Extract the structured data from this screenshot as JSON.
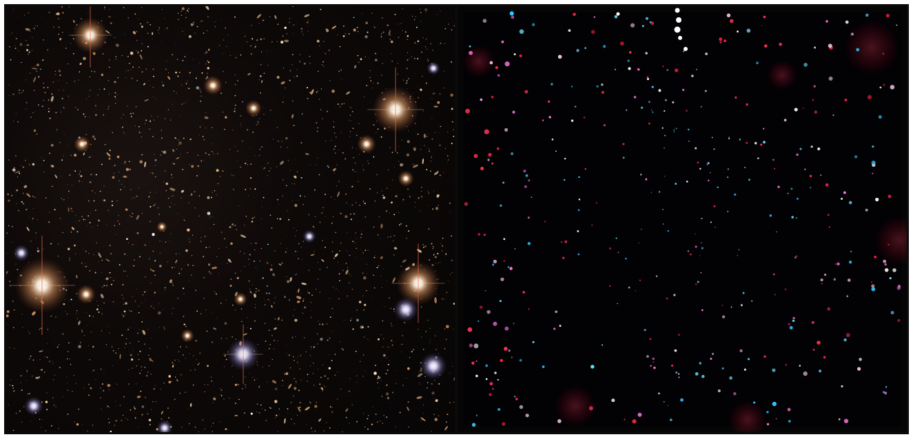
{
  "panels": [
    {
      "id": "optical-deep-field",
      "description_colors": {
        "background": "#0b0807",
        "star_warm": "#ffd7a8",
        "star_core": "#ffffff",
        "galaxy": "#d9a36a"
      }
    },
    {
      "id": "xray-deep-field",
      "description_colors": {
        "background": "#000000",
        "source_red": "#ff3355",
        "source_blue": "#33c8ff",
        "source_white": "#ffffff",
        "source_magenta": "#ff77dd"
      }
    }
  ]
}
